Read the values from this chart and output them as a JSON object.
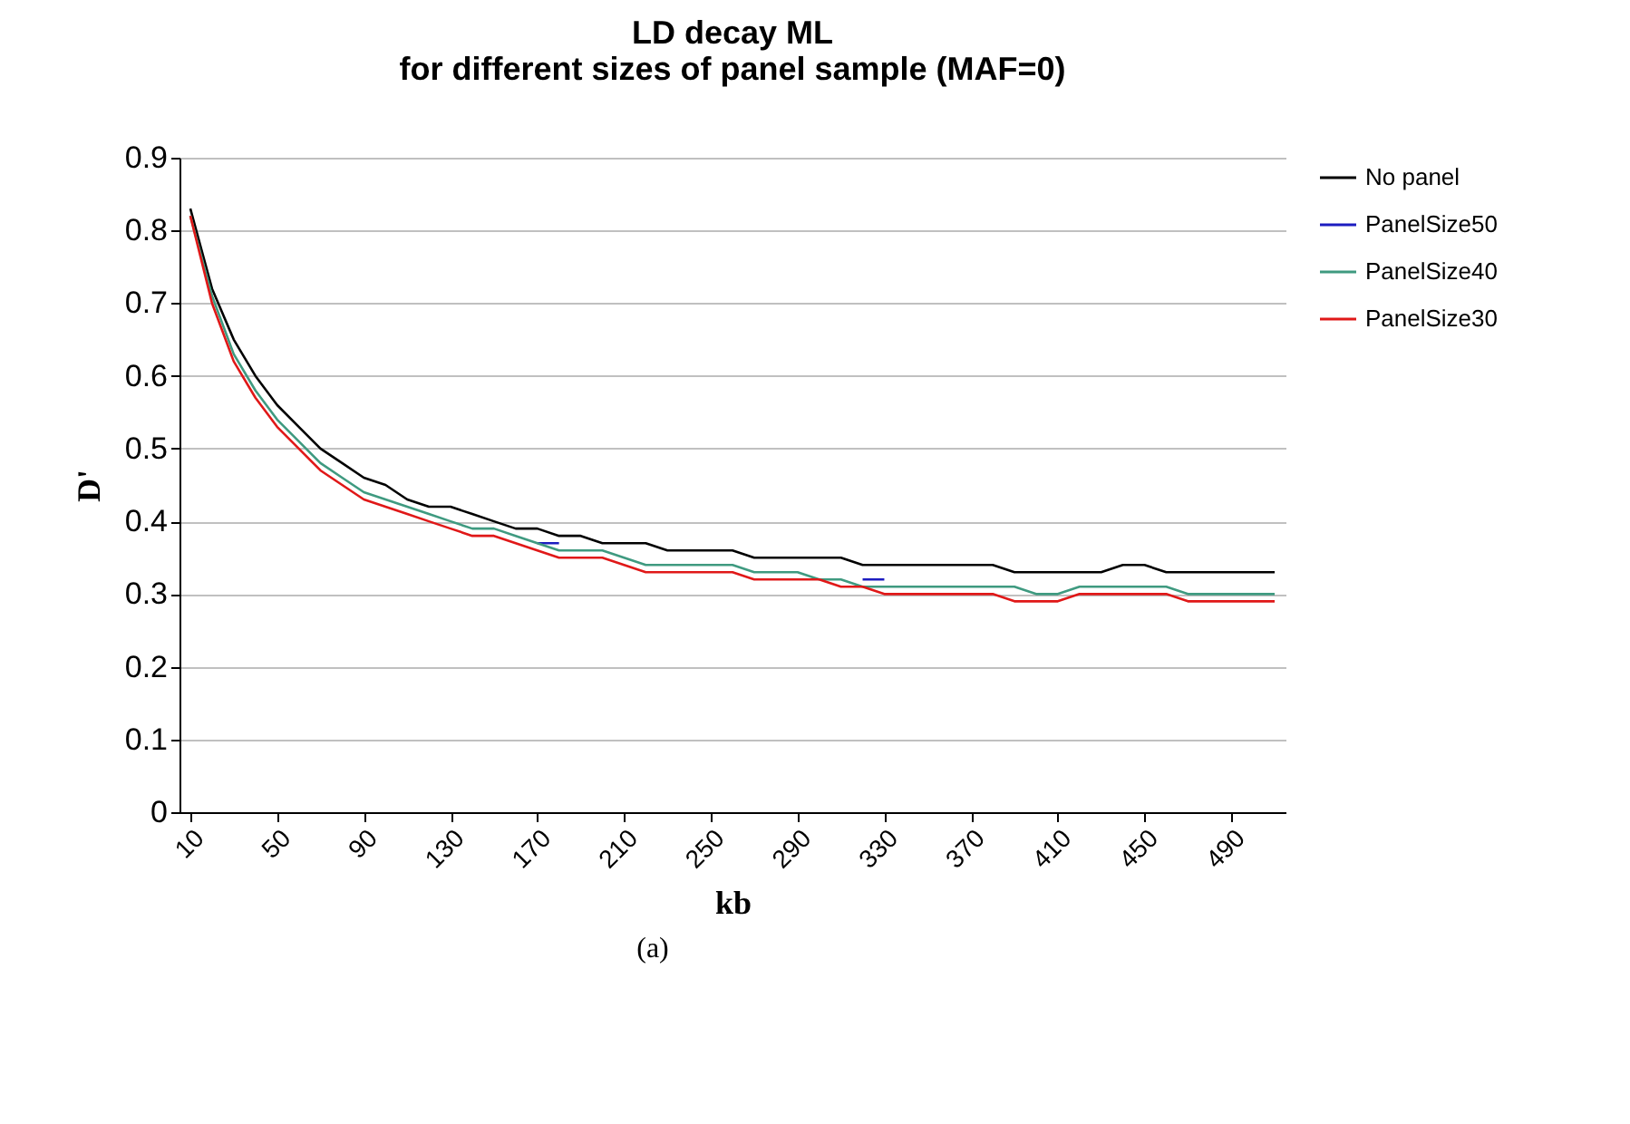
{
  "chart_data": {
    "type": "line",
    "title": "LD decay ML\nfor different sizes of panel sample (MAF=0)",
    "xlabel": "kb",
    "ylabel": "D'",
    "annotations": [
      "(a)"
    ],
    "categories": [
      "10",
      null,
      null,
      null,
      "50",
      null,
      null,
      null,
      "90",
      null,
      null,
      null,
      "130",
      null,
      null,
      null,
      "170",
      null,
      null,
      null,
      "210",
      null,
      null,
      null,
      "250",
      null,
      null,
      null,
      "290",
      null,
      null,
      null,
      "330",
      null,
      null,
      null,
      "370",
      null,
      null,
      null,
      "410",
      null,
      null,
      null,
      "450",
      null,
      null,
      null,
      "490",
      null,
      null
    ],
    "series": [
      {
        "name": "No panel",
        "color": "#000000",
        "values": [
          0.83,
          0.72,
          0.65,
          0.6,
          0.56,
          0.53,
          0.5,
          0.48,
          0.46,
          0.45,
          0.43,
          0.42,
          0.42,
          0.41,
          0.4,
          0.39,
          0.39,
          0.38,
          0.38,
          0.37,
          0.37,
          0.37,
          0.36,
          0.36,
          0.36,
          0.36,
          0.35,
          0.35,
          0.35,
          0.35,
          0.35,
          0.34,
          0.34,
          0.34,
          0.34,
          0.34,
          0.34,
          0.34,
          0.33,
          0.33,
          0.33,
          0.33,
          0.33,
          0.34,
          0.34,
          0.33,
          0.33,
          0.33,
          0.33,
          0.33,
          0.33
        ]
      },
      {
        "name": "PanelSize50",
        "color": "#1c1cc0",
        "values": [
          null,
          null,
          null,
          null,
          null,
          null,
          null,
          null,
          null,
          null,
          null,
          null,
          null,
          null,
          null,
          null,
          0.37,
          0.37,
          null,
          null,
          null,
          null,
          null,
          null,
          null,
          null,
          null,
          null,
          null,
          null,
          null,
          0.32,
          0.32,
          null,
          null,
          null,
          null,
          null,
          null,
          null,
          null,
          null,
          null,
          null,
          null,
          null,
          null,
          null,
          null,
          null,
          null
        ]
      },
      {
        "name": "PanelSize40",
        "color": "#3f9a80",
        "values": [
          0.82,
          0.71,
          0.63,
          0.58,
          0.54,
          0.51,
          0.48,
          0.46,
          0.44,
          0.43,
          0.42,
          0.41,
          0.4,
          0.39,
          0.39,
          0.38,
          0.37,
          0.36,
          0.36,
          0.36,
          0.35,
          0.34,
          0.34,
          0.34,
          0.34,
          0.34,
          0.33,
          0.33,
          0.33,
          0.32,
          0.32,
          0.31,
          0.31,
          0.31,
          0.31,
          0.31,
          0.31,
          0.31,
          0.31,
          0.3,
          0.3,
          0.31,
          0.31,
          0.31,
          0.31,
          0.31,
          0.3,
          0.3,
          0.3,
          0.3,
          0.3
        ]
      },
      {
        "name": "PanelSize30",
        "color": "#e01818",
        "values": [
          0.82,
          0.7,
          0.62,
          0.57,
          0.53,
          0.5,
          0.47,
          0.45,
          0.43,
          0.42,
          0.41,
          0.4,
          0.39,
          0.38,
          0.38,
          0.37,
          0.36,
          0.35,
          0.35,
          0.35,
          0.34,
          0.33,
          0.33,
          0.33,
          0.33,
          0.33,
          0.32,
          0.32,
          0.32,
          0.32,
          0.31,
          0.31,
          0.3,
          0.3,
          0.3,
          0.3,
          0.3,
          0.3,
          0.29,
          0.29,
          0.29,
          0.3,
          0.3,
          0.3,
          0.3,
          0.3,
          0.29,
          0.29,
          0.29,
          0.29,
          0.29
        ]
      }
    ],
    "ylim": [
      0,
      0.9
    ],
    "yticks": [
      0,
      0.1,
      0.2,
      0.3,
      0.4,
      0.5,
      0.6,
      0.7,
      0.8,
      0.9
    ],
    "grid": "y",
    "legend": "right",
    "marker": "none",
    "line_style": "solid"
  }
}
